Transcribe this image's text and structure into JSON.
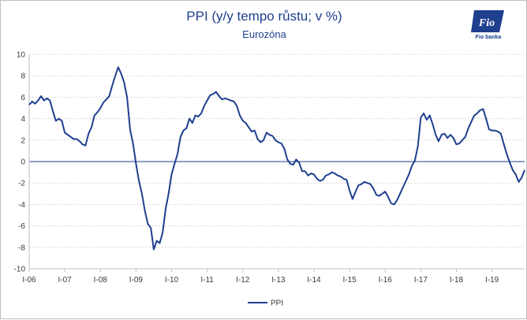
{
  "header": {
    "title": "PPI (y/y tempo růstu; v %)",
    "subtitle": "Eurozóna",
    "logo_text": "Fio banka"
  },
  "colors": {
    "series": "#1f3f8f",
    "title": "#1f3f8f",
    "grid": "#d9d9d9",
    "zero_line": "#1f3f8f"
  },
  "chart_data": {
    "type": "line",
    "title": "PPI (y/y tempo růstu; v %)",
    "subtitle": "Eurozóna",
    "xlabel": "",
    "ylabel": "",
    "ylim": [
      -10,
      10
    ],
    "y_ticks": [
      "10",
      "8",
      "6",
      "4",
      "2",
      "0",
      "-2",
      "-4",
      "-6",
      "-8",
      "-10"
    ],
    "x_ticks": [
      "I-06",
      "I-07",
      "I-08",
      "I-09",
      "I-10",
      "I-11",
      "I-12",
      "I-13",
      "I-14",
      "I-15",
      "I-16",
      "I-17",
      "I-18",
      "I-19"
    ],
    "x_start": "2006-01",
    "x_end": "2019-12",
    "grid": "horizontal",
    "legend": "bottom-center",
    "series": [
      {
        "name": "PPI",
        "values": [
          5.3,
          5.6,
          5.4,
          5.7,
          6.1,
          5.7,
          5.9,
          5.7,
          4.7,
          3.8,
          4.0,
          3.8,
          2.7,
          2.5,
          2.3,
          2.1,
          2.1,
          1.9,
          1.6,
          1.5,
          2.6,
          3.2,
          4.3,
          4.6,
          5.0,
          5.5,
          5.8,
          6.1,
          7.1,
          8.0,
          8.8,
          8.2,
          7.4,
          6.0,
          3.0,
          1.7,
          -0.2,
          -1.8,
          -3.0,
          -4.6,
          -5.8,
          -6.2,
          -8.2,
          -7.4,
          -7.6,
          -6.6,
          -4.4,
          -3.0,
          -1.2,
          -0.2,
          0.7,
          2.3,
          2.9,
          3.1,
          4.0,
          3.6,
          4.3,
          4.2,
          4.5,
          5.2,
          5.7,
          6.2,
          6.3,
          6.5,
          6.1,
          5.8,
          5.9,
          5.8,
          5.7,
          5.6,
          5.2,
          4.3,
          3.8,
          3.6,
          3.2,
          2.8,
          2.9,
          2.1,
          1.8,
          2.0,
          2.7,
          2.5,
          2.4,
          2.0,
          1.8,
          1.7,
          1.2,
          0.2,
          -0.2,
          -0.3,
          0.2,
          -0.1,
          -0.9,
          -0.9,
          -1.3,
          -1.1,
          -1.2,
          -1.6,
          -1.8,
          -1.7,
          -1.3,
          -1.2,
          -1.0,
          -1.1,
          -1.3,
          -1.4,
          -1.6,
          -1.7,
          -2.7,
          -3.5,
          -2.8,
          -2.2,
          -2.1,
          -1.9,
          -2.0,
          -2.1,
          -2.5,
          -3.1,
          -3.2,
          -3.0,
          -2.8,
          -3.3,
          -3.9,
          -4.0,
          -3.6,
          -3.0,
          -2.4,
          -1.8,
          -1.2,
          -0.4,
          0.1,
          1.4,
          4.1,
          4.5,
          3.9,
          4.3,
          3.5,
          2.5,
          1.9,
          2.5,
          2.6,
          2.2,
          2.5,
          2.2,
          1.6,
          1.7,
          2.0,
          2.3,
          3.1,
          3.7,
          4.3,
          4.5,
          4.8,
          4.9,
          4.0,
          3.0,
          2.9,
          2.9,
          2.8,
          2.6,
          1.6,
          0.7,
          -0.1,
          -0.8,
          -1.2,
          -1.9,
          -1.5,
          -0.8
        ]
      }
    ]
  }
}
